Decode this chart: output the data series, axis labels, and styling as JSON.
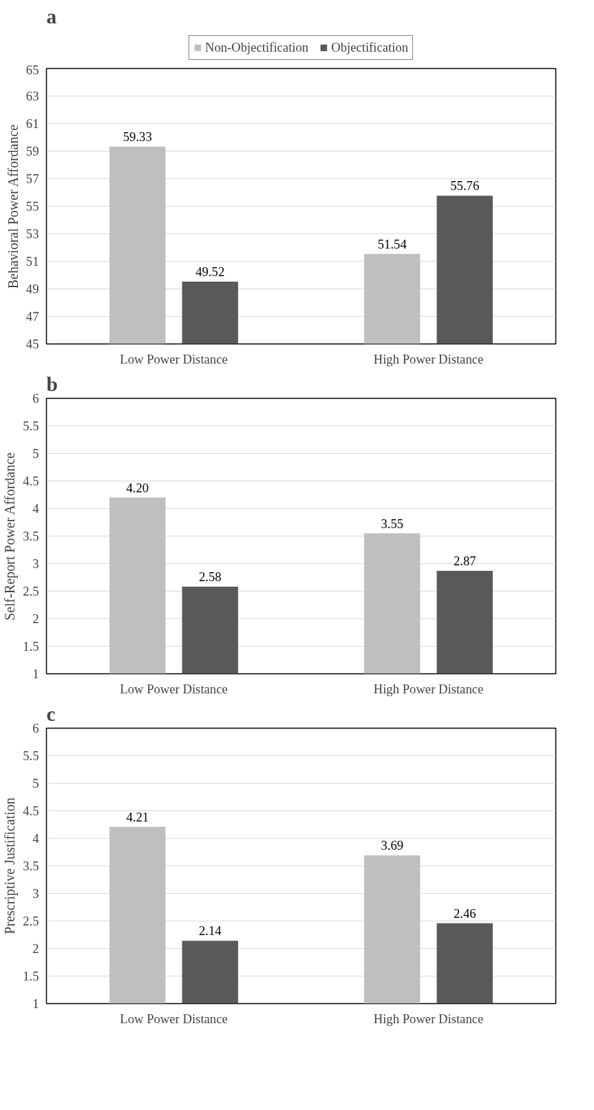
{
  "chart_data": [
    {
      "type": "bar",
      "title": "a",
      "ylabel": "Behavioral Power Affordance",
      "categories": [
        "Low Power Distance",
        "High Power Distance"
      ],
      "ylim": [
        45,
        65
      ],
      "yticks": [
        45,
        47,
        49,
        51,
        53,
        55,
        57,
        59,
        61,
        63,
        65
      ],
      "grid": "y",
      "legend": "top",
      "series": [
        {
          "name": "Non-Objectification",
          "color": "#bfbfbf",
          "values": [
            59.33,
            51.54
          ],
          "value_labels": [
            "59.33",
            "51.54"
          ]
        },
        {
          "name": "Objectification",
          "color": "#595959",
          "values": [
            49.52,
            55.76
          ],
          "value_labels": [
            "49.52",
            "55.76"
          ]
        }
      ]
    },
    {
      "type": "bar",
      "title": "b",
      "ylabel": "Self-Report Power Affordance",
      "categories": [
        "Low Power Distance",
        "High Power Distance"
      ],
      "ylim": [
        1,
        6
      ],
      "yticks": [
        1,
        1.5,
        2,
        2.5,
        3,
        3.5,
        4,
        4.5,
        5,
        5.5,
        6
      ],
      "grid": "y",
      "series": [
        {
          "color": "#bfbfbf",
          "values": [
            4.2,
            3.55
          ],
          "value_labels": [
            "4.20",
            "3.55"
          ]
        },
        {
          "color": "#595959",
          "values": [
            2.58,
            2.87
          ],
          "value_labels": [
            "2.58",
            "2.87"
          ]
        }
      ]
    },
    {
      "type": "bar",
      "title": "c",
      "ylabel": "Prescriptive Justification",
      "categories": [
        "Low Power Distance",
        "High Power Distance"
      ],
      "ylim": [
        1,
        6
      ],
      "yticks": [
        1,
        1.5,
        2,
        2.5,
        3,
        3.5,
        4,
        4.5,
        5,
        5.5,
        6
      ],
      "grid": "y",
      "series": [
        {
          "color": "#bfbfbf",
          "values": [
            4.21,
            3.69
          ],
          "value_labels": [
            "4.21",
            "3.69"
          ]
        },
        {
          "color": "#595959",
          "values": [
            2.14,
            2.46
          ],
          "value_labels": [
            "2.14",
            "2.46"
          ]
        }
      ]
    }
  ]
}
